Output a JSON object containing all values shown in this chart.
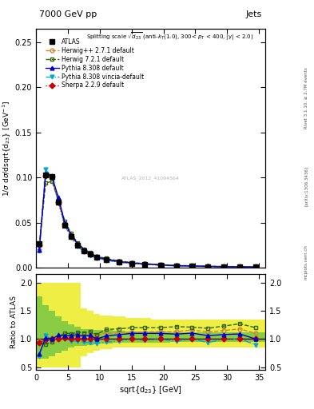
{
  "title_top": "7000 GeV pp",
  "title_right": "Jets",
  "rivet_label": "Rivet 3.1.10, ≥ 2.7M events",
  "arxiv_label": "[arXiv:1306.3436]",
  "mcplots_label": "mcplots.cern.ch",
  "watermark": "ATLAS_2012_41094564",
  "xlabel": "sqrt{d_{23}} [GeV]",
  "ylabel_main": "1/σ dσ/dsqrt(d_{23}) [GeV⁻¹]",
  "ylabel_ratio": "Ratio to ATLAS",
  "x_data": [
    0.5,
    1.5,
    2.5,
    3.5,
    4.5,
    5.5,
    6.5,
    7.5,
    8.5,
    9.5,
    11.0,
    13.0,
    15.0,
    17.0,
    19.5,
    22.0,
    24.5,
    27.0,
    29.5,
    32.0,
    34.5
  ],
  "atlas_y": [
    0.027,
    0.103,
    0.101,
    0.073,
    0.047,
    0.035,
    0.025,
    0.019,
    0.015,
    0.012,
    0.009,
    0.0065,
    0.005,
    0.004,
    0.003,
    0.0023,
    0.0019,
    0.0016,
    0.0013,
    0.0011,
    0.001
  ],
  "herwig271_y": [
    0.026,
    0.102,
    0.099,
    0.072,
    0.049,
    0.036,
    0.026,
    0.02,
    0.016,
    0.013,
    0.01,
    0.0072,
    0.0056,
    0.0045,
    0.0034,
    0.0026,
    0.0022,
    0.0018,
    0.0015,
    0.0013,
    0.0011
  ],
  "herwig721_y": [
    0.025,
    0.094,
    0.096,
    0.075,
    0.052,
    0.038,
    0.028,
    0.021,
    0.017,
    0.013,
    0.0105,
    0.0077,
    0.006,
    0.0048,
    0.0036,
    0.0028,
    0.0023,
    0.0019,
    0.0016,
    0.0014,
    0.0012
  ],
  "pythia8_y": [
    0.02,
    0.105,
    0.101,
    0.078,
    0.05,
    0.037,
    0.027,
    0.02,
    0.016,
    0.012,
    0.0095,
    0.007,
    0.0055,
    0.0044,
    0.0033,
    0.0025,
    0.0021,
    0.0017,
    0.0014,
    0.0012,
    0.001
  ],
  "pythia8v_y": [
    0.019,
    0.109,
    0.1,
    0.074,
    0.047,
    0.034,
    0.024,
    0.018,
    0.014,
    0.011,
    0.0085,
    0.0063,
    0.005,
    0.0039,
    0.003,
    0.0022,
    0.0019,
    0.0015,
    0.0013,
    0.0011,
    0.0009
  ],
  "sherpa_y": [
    0.025,
    0.102,
    0.101,
    0.073,
    0.048,
    0.035,
    0.025,
    0.019,
    0.015,
    0.012,
    0.009,
    0.0065,
    0.005,
    0.004,
    0.003,
    0.0023,
    0.0019,
    0.0016,
    0.0013,
    0.0011,
    0.001
  ],
  "ratio_herwig271": [
    0.96,
    0.99,
    0.98,
    0.99,
    1.04,
    1.03,
    1.04,
    1.05,
    1.07,
    1.08,
    1.11,
    1.11,
    1.12,
    1.125,
    1.13,
    1.13,
    1.16,
    1.125,
    1.15,
    1.18,
    1.1
  ],
  "ratio_herwig721": [
    0.93,
    0.91,
    0.95,
    1.03,
    1.11,
    1.09,
    1.12,
    1.11,
    1.13,
    1.08,
    1.17,
    1.18,
    1.2,
    1.2,
    1.2,
    1.22,
    1.21,
    1.19,
    1.23,
    1.27,
    1.2
  ],
  "ratio_pythia8": [
    0.74,
    1.02,
    1.0,
    1.07,
    1.06,
    1.06,
    1.08,
    1.05,
    1.07,
    1.0,
    1.056,
    1.077,
    1.1,
    1.1,
    1.1,
    1.087,
    1.105,
    1.06,
    1.08,
    1.09,
    1.0
  ],
  "ratio_pythia8v": [
    0.7,
    1.06,
    0.99,
    1.01,
    1.0,
    0.97,
    0.96,
    0.95,
    0.93,
    0.92,
    0.944,
    0.969,
    1.0,
    0.975,
    1.0,
    0.957,
    1.0,
    0.9375,
    1.0,
    1.0,
    0.9
  ],
  "ratio_sherpa": [
    0.93,
    0.99,
    1.0,
    1.0,
    1.02,
    1.0,
    1.0,
    1.0,
    1.0,
    1.0,
    1.0,
    1.0,
    1.0,
    1.0,
    1.0,
    1.0,
    1.0,
    1.0,
    1.0,
    1.0,
    1.0
  ],
  "bin_edges": [
    0,
    1,
    2,
    3,
    4,
    5,
    6,
    7,
    8,
    9,
    10,
    12,
    14,
    16,
    18,
    21,
    23,
    26,
    28,
    31,
    33,
    36
  ],
  "band_yellow_lo": [
    0.5,
    0.5,
    0.5,
    0.5,
    0.5,
    0.5,
    0.5,
    0.7,
    0.75,
    0.8,
    0.82,
    0.85,
    0.85,
    0.85,
    0.85,
    0.85,
    0.85,
    0.85,
    0.85,
    0.85,
    0.85
  ],
  "band_yellow_hi": [
    2.0,
    2.0,
    2.0,
    2.0,
    2.0,
    2.0,
    2.0,
    1.55,
    1.5,
    1.45,
    1.42,
    1.4,
    1.38,
    1.38,
    1.35,
    1.35,
    1.35,
    1.35,
    1.35,
    1.35,
    1.35
  ],
  "band_green_lo": [
    0.65,
    0.65,
    0.7,
    0.75,
    0.8,
    0.85,
    0.88,
    0.88,
    0.9,
    0.92,
    0.92,
    0.93,
    0.93,
    0.94,
    0.94,
    0.95,
    0.95,
    0.95,
    0.95,
    0.95,
    0.95
  ],
  "band_green_hi": [
    1.75,
    1.6,
    1.5,
    1.4,
    1.32,
    1.26,
    1.22,
    1.18,
    1.18,
    1.16,
    1.16,
    1.15,
    1.14,
    1.13,
    1.13,
    1.12,
    1.12,
    1.12,
    1.12,
    1.12,
    1.12
  ],
  "color_herwig271": "#cc8833",
  "color_herwig721": "#336600",
  "color_pythia8": "#0000cc",
  "color_pythia8v": "#00aacc",
  "color_sherpa": "#cc0000",
  "color_atlas": "#000000",
  "color_yellow": "#eeee44",
  "color_green": "#88cc44",
  "ylim_main": [
    0.0,
    0.265
  ],
  "ylim_ratio": [
    0.45,
    2.15
  ],
  "xlim": [
    0,
    36
  ],
  "yticks_main": [
    0.0,
    0.05,
    0.1,
    0.15,
    0.2,
    0.25
  ],
  "yticks_ratio": [
    0.5,
    1.0,
    1.5,
    2.0
  ]
}
